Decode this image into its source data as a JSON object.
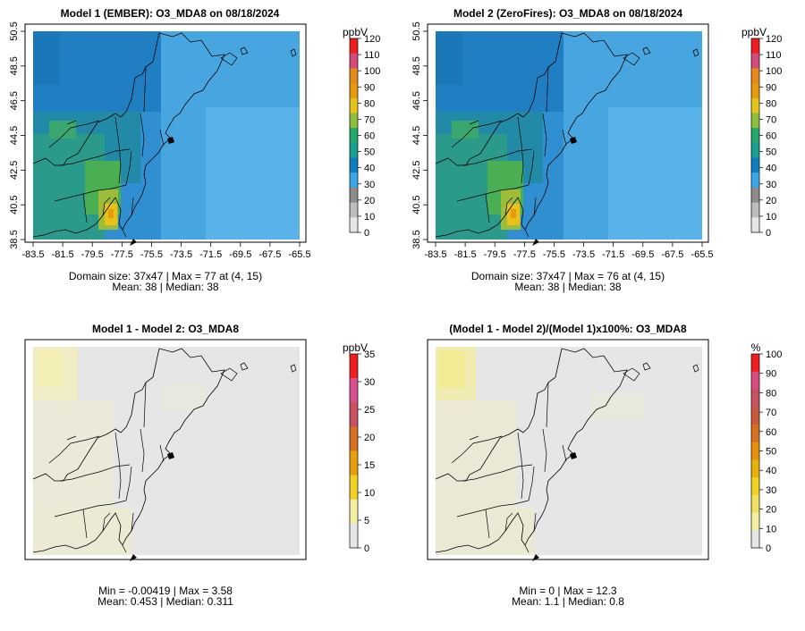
{
  "panels": [
    {
      "title": "Model 1 (EMBER): O3_MDA8 on 08/18/2024",
      "unit": "ppbV",
      "colorbar_ticks": [
        "0",
        "10",
        "20",
        "30",
        "40",
        "50",
        "60",
        "70",
        "80",
        "90",
        "100",
        "110",
        "120"
      ],
      "colorbar_colors": [
        "#e6e6e6",
        "#bdbdbd",
        "#8c8c8c",
        "#3aa8e6",
        "#0d7fc1",
        "#1a9e8f",
        "#22a86a",
        "#8fbf3a",
        "#e6c21a",
        "#e69a0d",
        "#e68a1a",
        "#d44a78",
        "#f01e1e"
      ],
      "x_ticks": [
        "-83.5",
        "-81.5",
        "-79.5",
        "-77.5",
        "-75.5",
        "-73.5",
        "-71.5",
        "-69.5",
        "-67.5",
        "-65.5"
      ],
      "y_ticks": [
        "38.5",
        "40.5",
        "42.5",
        "44.5",
        "46.5",
        "48.5",
        "50.5"
      ],
      "stats_line1": "Domain size: 37x47 | Max = 77 at (4, 15)",
      "stats_line2": "Mean: 38 |  Median: 38"
    },
    {
      "title": "Model 2 (ZeroFires): O3_MDA8 on 08/18/2024",
      "unit": "ppbV",
      "colorbar_ticks": [
        "0",
        "10",
        "20",
        "30",
        "40",
        "50",
        "60",
        "70",
        "80",
        "90",
        "100",
        "110",
        "120"
      ],
      "colorbar_colors": [
        "#e6e6e6",
        "#bdbdbd",
        "#8c8c8c",
        "#3aa8e6",
        "#0d7fc1",
        "#1a9e8f",
        "#22a86a",
        "#8fbf3a",
        "#e6c21a",
        "#e69a0d",
        "#e68a1a",
        "#d44a78",
        "#f01e1e"
      ],
      "x_ticks": [
        "-83.5",
        "-81.5",
        "-79.5",
        "-77.5",
        "-75.5",
        "-73.5",
        "-71.5",
        "-69.5",
        "-67.5",
        "-65.5"
      ],
      "y_ticks": [
        "38.5",
        "40.5",
        "42.5",
        "44.5",
        "46.5",
        "48.5",
        "50.5"
      ],
      "stats_line1": "Domain size: 37x47 | Max = 76 at (4, 15)",
      "stats_line2": "Mean: 38 |  Median: 38"
    },
    {
      "title": "Model 1 - Model 2: O3_MDA8",
      "unit": "ppbV",
      "colorbar_ticks": [
        "0",
        "5",
        "10",
        "15",
        "20",
        "25",
        "30",
        "35"
      ],
      "colorbar_colors": [
        "#e6e6e6",
        "#f5f0a0",
        "#f0d020",
        "#e6a00d",
        "#d87020",
        "#c85060",
        "#d85090",
        "#f01e1e"
      ],
      "stats_line1": "Min = -0.00419 | Max = 3.58",
      "stats_line2": "Mean: 0.453 |  Median: 0.311"
    },
    {
      "title": "(Model 1 - Model 2)/(Model 1)x100%: O3_MDA8",
      "unit": "%",
      "colorbar_ticks": [
        "0",
        "10",
        "20",
        "30",
        "40",
        "50",
        "60",
        "70",
        "80",
        "90",
        "100"
      ],
      "colorbar_colors": [
        "#e6e6e6",
        "#f5f0a0",
        "#f0e060",
        "#f0d020",
        "#e6b00d",
        "#e6900d",
        "#d87020",
        "#c85a40",
        "#c85060",
        "#d84a80",
        "#f01e1e"
      ],
      "stats_line1": "Min = 0 | Max = 12.3",
      "stats_line2": "Mean: 1.1 |  Median: 0.8"
    }
  ]
}
